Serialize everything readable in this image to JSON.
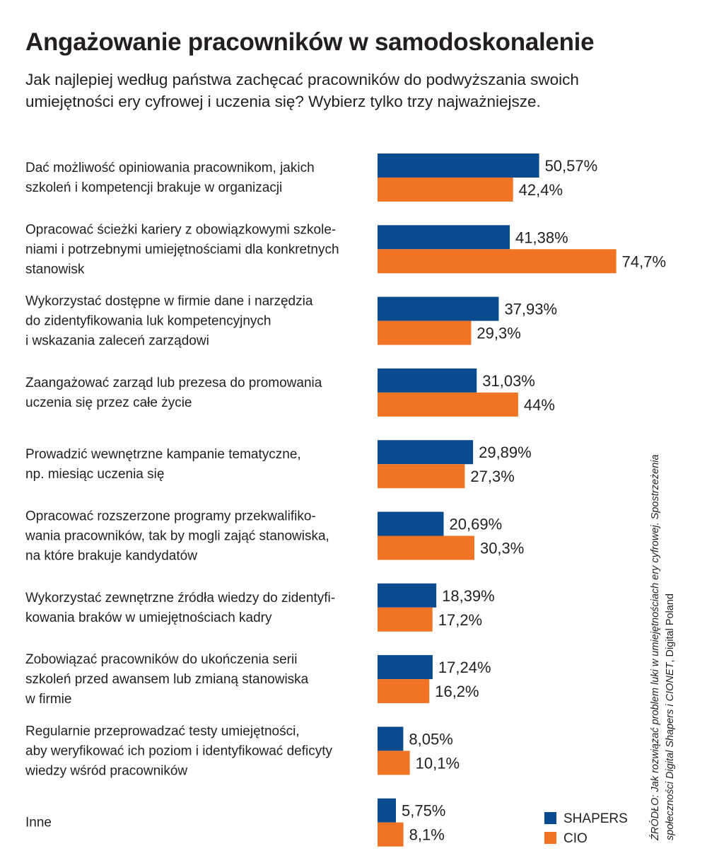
{
  "title": "Angażowanie pracowników w samodoskonalenie",
  "subtitle": "Jak najlepiej według państwa zachęcać pracowników do podwyższania swoich umiejętności ery cyfrowej i uczenia się? Wybierz tylko trzy najważniejsze.",
  "source": {
    "line1": "ŹRÓDŁO: Jak rozwiązać problem luki w umiejętnościach ery cyfrowej. Spostrzeżenia",
    "line2_italic": "społeczności Digital Shapers i CIONET",
    "line2_plain": ", Digital Poland"
  },
  "colors": {
    "shapers": "#0a4a8f",
    "cio": "#f07423",
    "text": "#231f20"
  },
  "chart_data": {
    "type": "bar",
    "orientation": "horizontal",
    "categories": [
      [
        "Dać możliwość opiniowania pracownikom, jakich",
        "szkoleń i kompetencji brakuje w organizacji"
      ],
      [
        "Opracować ścieżki kariery z obowiązkowymi szkole-",
        "niami i potrzebnymi umiejętnościami dla konkretnych",
        "stanowisk"
      ],
      [
        "Wykorzystać dostępne w firmie dane i narzędzia",
        "do zidentyfikowania luk kompetencyjnych",
        "i wskazania zaleceń zarządowi"
      ],
      [
        "Zaangażować zarząd lub prezesa do promowania",
        "uczenia się przez całe życie"
      ],
      [
        "Prowadzić wewnętrzne kampanie tematyczne,",
        "np. miesiąc uczenia się"
      ],
      [
        "Opracować rozszerzone programy przekwalifiko-",
        "wania pracowników, tak by mogli zająć stanowiska,",
        "na które brakuje kandydatów"
      ],
      [
        "Wykorzystać zewnętrzne źródła wiedzy do zidentyfi-",
        "kowania braków w umiejętnościach kadry"
      ],
      [
        "Zobowiązać pracowników do ukończenia serii",
        "szkoleń przed awansem lub zmianą stanowiska",
        "w firmie"
      ],
      [
        "Regularnie przeprowadzać testy umiejętności,",
        "aby weryfikować ich poziom i identyfikować deficyty",
        "wiedzy wśród pracowników"
      ],
      [
        "Inne"
      ]
    ],
    "series": [
      {
        "name": "SHAPERS",
        "values": [
          50.57,
          41.38,
          37.93,
          31.03,
          29.89,
          20.69,
          18.39,
          17.24,
          8.05,
          5.75
        ],
        "labels": [
          "50,57%",
          "41,38%",
          "37,93%",
          "31,03%",
          "29,89%",
          "20,69%",
          "18,39%",
          "17,24%",
          "8,05%",
          "5,75%"
        ]
      },
      {
        "name": "CIO",
        "values": [
          42.4,
          74.7,
          29.3,
          44,
          27.3,
          30.3,
          17.2,
          16.2,
          10.1,
          8.1
        ],
        "labels": [
          "42,4%",
          "74,7%",
          "29,3%",
          "44%",
          "27,3%",
          "30,3%",
          "17,2%",
          "16,2%",
          "10,1%",
          "8,1%"
        ]
      }
    ],
    "unit": "%",
    "legend_position": "bottom-right",
    "grid": false,
    "axes_visible": false
  }
}
